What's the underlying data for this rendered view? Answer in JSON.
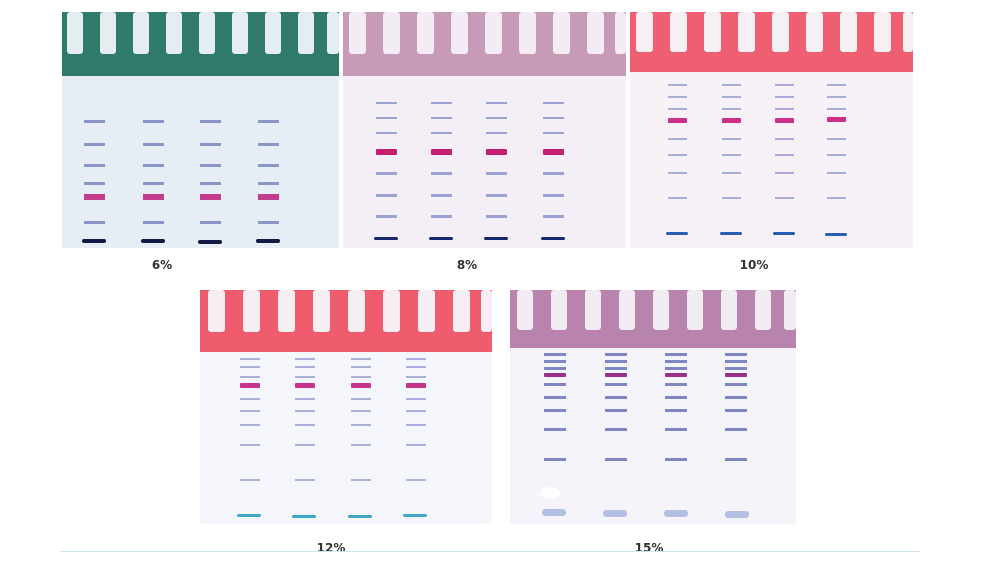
{
  "gels": [
    {
      "id": "gel-6",
      "label": "6%",
      "comb_color": "#2f7a6a",
      "background": "#e7edf5",
      "band_color": "#7f8fc6",
      "marker_color": "#c43c8e",
      "front_color": "#111a44"
    },
    {
      "id": "gel-8",
      "label": "8%",
      "comb_color": "#c79ab8",
      "background": "#f4eef6",
      "band_color": "#8a94cc",
      "marker_color": "#c41f6e",
      "front_color": "#182a6e"
    },
    {
      "id": "gel-10",
      "label": "10%",
      "comb_color": "#ef5f72",
      "background": "#f7f1f7",
      "band_color": "#9aa2d6",
      "marker_color": "#cc2f88",
      "front_color": "#2a5fb0"
    },
    {
      "id": "gel-12",
      "label": "12%",
      "comb_color": "#ee5c6e",
      "background": "#f4f6fb",
      "band_color": "#a5acd9",
      "marker_color": "#c8348c",
      "front_color": "#3fa6c8"
    },
    {
      "id": "gel-15",
      "label": "15%",
      "comb_color": "#b883ad",
      "background": "#f4f4fa",
      "band_color": "#7f86c4",
      "marker_color": "#9c2f88",
      "front_color": "#aab8e0"
    }
  ]
}
